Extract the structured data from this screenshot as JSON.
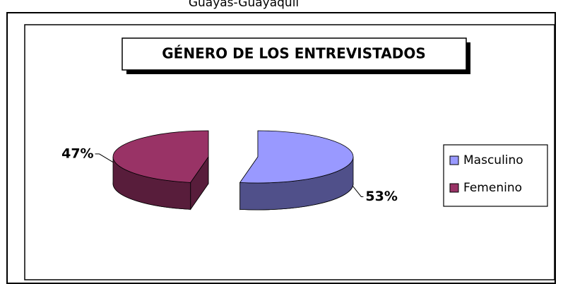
{
  "caption": "Guayas-Guayaquil",
  "chart_data": {
    "type": "pie",
    "title": "GÉNERO DE LOS ENTREVISTADOS",
    "categories": [
      "Masculino",
      "Femenino"
    ],
    "values": [
      53,
      47
    ],
    "value_labels": [
      "53%",
      "47%"
    ],
    "colors": [
      "#9999ff",
      "#993366"
    ],
    "side_colors": [
      "#50508a",
      "#581d3b"
    ],
    "legend": "right"
  }
}
